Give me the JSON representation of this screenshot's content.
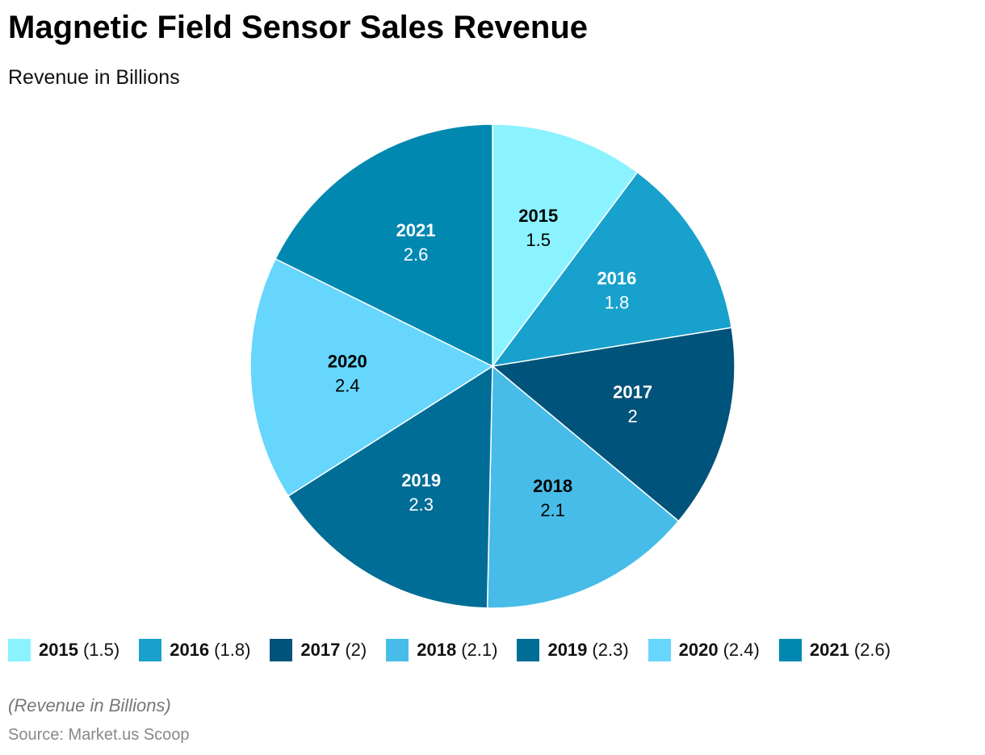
{
  "chart_data": {
    "type": "pie",
    "title": "Magnetic Field Sensor Sales Revenue",
    "subtitle": "Revenue in Billions",
    "categories": [
      "2015",
      "2016",
      "2017",
      "2018",
      "2019",
      "2020",
      "2021"
    ],
    "values": [
      1.5,
      1.8,
      2,
      2.1,
      2.3,
      2.4,
      2.6
    ],
    "value_labels": [
      "1.5",
      "1.8",
      "2",
      "2.1",
      "2.3",
      "2.4",
      "2.6"
    ],
    "colors": [
      "#8af3ff",
      "#18a1cd",
      "#00537a",
      "#47bce8",
      "#006d96",
      "#66d6fd",
      "#0088b1"
    ],
    "label_colors": [
      "#000000",
      "#ffffff",
      "#ffffff",
      "#000000",
      "#ffffff",
      "#000000",
      "#ffffff"
    ],
    "legend_placement": "bottom",
    "start_angle": "top, clockwise"
  },
  "footer": {
    "note": "(Revenue in Billions)",
    "source": "Source: Market.us Scoop"
  }
}
